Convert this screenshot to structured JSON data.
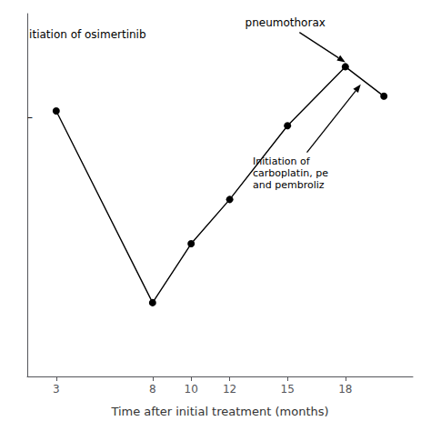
{
  "chart_data": {
    "type": "line",
    "x": [
      3,
      8,
      10,
      12,
      15,
      18,
      20
    ],
    "values": [
      75,
      10,
      30,
      45,
      70,
      90,
      80
    ],
    "color": "#000000",
    "marker": "circle",
    "xlabel": "Time after initial treatment (months)",
    "xlim": [
      1.5,
      21.5
    ],
    "xticks": [
      3,
      8,
      10,
      12,
      15,
      18
    ],
    "ylim": [
      -15,
      108
    ],
    "yticks": [],
    "grid": false,
    "tick_labels": "x",
    "annotations": [
      {
        "text": "itiation of osimertinib",
        "x": 1.6,
        "y": 103
      },
      {
        "text": "–",
        "x": 1.5,
        "y": 75
      },
      {
        "text": "pneumothorax",
        "x": 12.8,
        "y": 107,
        "arrow_x": 18.0,
        "arrow_y": 91.5
      },
      {
        "text": "Initiation of\ncarboplatin, pe\nand pembroliz",
        "x": 13.2,
        "y": 60,
        "arrow_x": 18.8,
        "arrow_y": 84
      }
    ]
  }
}
